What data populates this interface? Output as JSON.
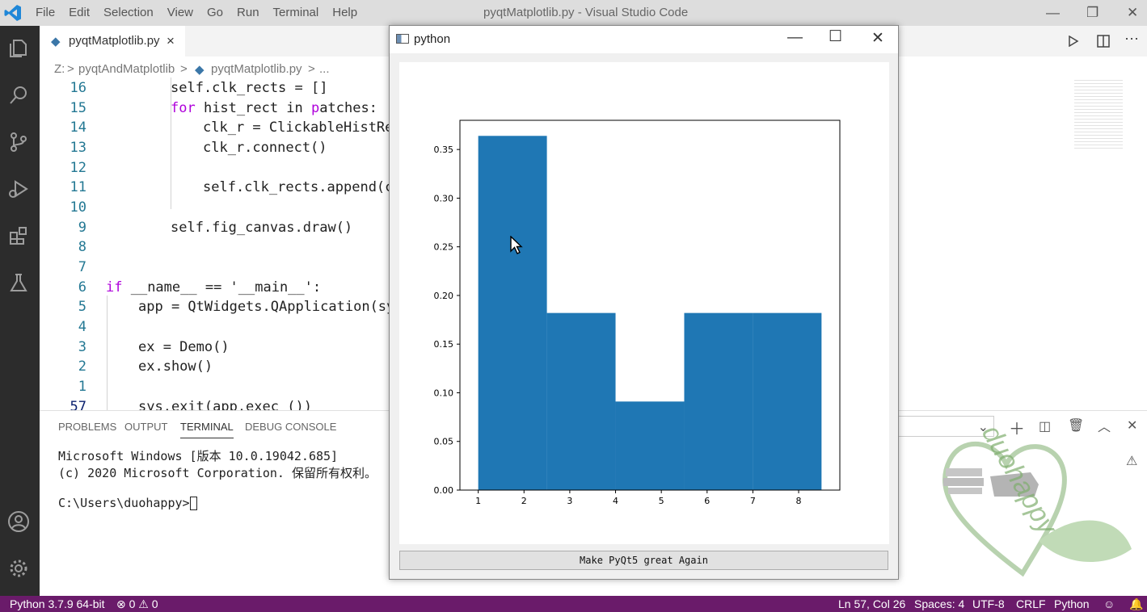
{
  "vscode": {
    "menu": [
      "File",
      "Edit",
      "Selection",
      "View",
      "Go",
      "Run",
      "Terminal",
      "Help"
    ],
    "window_title": "pyqtMatplotlib.py - Visual Studio Code",
    "tab": {
      "label": "pyqtMatplotlib.py",
      "close": "×"
    },
    "breadcrumb": {
      "root": "Z:",
      "sep1": ">",
      "folder": "pyqtAndMatplotlib",
      "sep2": ">",
      "file": "pyqtMatplotlib.py",
      "sep3": ">",
      "more": "..."
    },
    "code_lines": [
      {
        "num": "16",
        "text": "self.clk_rects = []"
      },
      {
        "num": "15",
        "text": "for hist_rect in patches:"
      },
      {
        "num": "14",
        "text": "clk_r = ClickableHistRec"
      },
      {
        "num": "13",
        "text": "clk_r.connect()"
      },
      {
        "num": "12",
        "text": ""
      },
      {
        "num": "11",
        "text": "self.clk_rects.append(cl"
      },
      {
        "num": "10",
        "text": ""
      },
      {
        "num": "9",
        "text": "self.fig_canvas.draw()"
      },
      {
        "num": "8",
        "text": ""
      },
      {
        "num": "7",
        "text": ""
      },
      {
        "num": "6",
        "text": "if __name__ == '__main__':"
      },
      {
        "num": "5",
        "text": "app = QtWidgets.QApplication(sys"
      },
      {
        "num": "4",
        "text": ""
      },
      {
        "num": "3",
        "text": "ex = Demo()"
      },
      {
        "num": "2",
        "text": "ex.show()"
      },
      {
        "num": "1",
        "text": ""
      },
      {
        "num": "57",
        "text": "sys.exit(app.exec_())"
      }
    ],
    "panel_tabs": [
      "PROBLEMS",
      "OUTPUT",
      "TERMINAL",
      "DEBUG CONSOLE"
    ],
    "terminal": {
      "line1": "Microsoft Windows [版本 10.0.19042.685]",
      "line2": "(c) 2020 Microsoft Corporation. 保留所有权利。",
      "prompt": "C:\\Users\\duohappy>"
    },
    "status": {
      "python": "Python 3.7.9 64-bit",
      "errors": "⊗ 0 ⚠ 0",
      "position": "Ln 57, Col 26",
      "spaces": "Spaces: 4",
      "encoding": "UTF-8",
      "eol": "CRLF",
      "language": "Python"
    }
  },
  "pywindow": {
    "title": "python",
    "button_label": "Make PyQt5 great Again"
  },
  "watermark_text": "duohappy",
  "colors": {
    "bar": "#1f77b4",
    "statusbar": "#6a1b6a",
    "activity": "#2c2c2c"
  },
  "chart_data": {
    "type": "bar",
    "bins": [
      {
        "x0": 1.0,
        "x1": 2.5,
        "value": 0.364
      },
      {
        "x0": 2.5,
        "x1": 4.0,
        "value": 0.182
      },
      {
        "x0": 4.0,
        "x1": 5.5,
        "value": 0.091
      },
      {
        "x0": 5.5,
        "x1": 7.0,
        "value": 0.182
      },
      {
        "x0": 7.0,
        "x1": 8.5,
        "value": 0.182
      }
    ],
    "xlim": [
      0.6,
      8.9
    ],
    "ylim": [
      0,
      0.38
    ],
    "xticks": [
      1,
      2,
      3,
      4,
      5,
      6,
      7,
      8
    ],
    "yticks": [
      "0.00",
      "0.05",
      "0.10",
      "0.15",
      "0.20",
      "0.25",
      "0.30",
      "0.35"
    ],
    "title": "",
    "xlabel": "",
    "ylabel": ""
  }
}
